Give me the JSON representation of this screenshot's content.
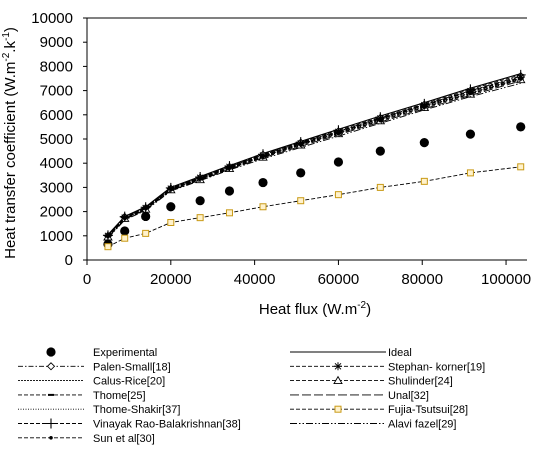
{
  "chart_data": {
    "type": "line",
    "xlabel": "Heat flux (W.m",
    "xlabel_sup": "-2",
    "xlabel_end": ")",
    "ylabel": "Heat transfer coefficient (W.m",
    "ylabel_sup1": "-2",
    "ylabel_mid": ".k",
    "ylabel_sup2": "-1",
    "ylabel_end": ")",
    "xlim": [
      0,
      105000
    ],
    "ylim": [
      0,
      10000
    ],
    "x_ticks": [
      0,
      20000,
      40000,
      60000,
      80000,
      100000
    ],
    "y_ticks": [
      0,
      1000,
      2000,
      3000,
      4000,
      5000,
      6000,
      7000,
      8000,
      9000,
      10000
    ],
    "x_tick_labels": [
      "0",
      "20000",
      "40000",
      "60000",
      "80000",
      "100000"
    ],
    "y_tick_labels": [
      "0",
      "1000",
      "2000",
      "3000",
      "4000",
      "5000",
      "6000",
      "7000",
      "8000",
      "9000",
      "10000"
    ],
    "grid": false,
    "legend_position": "bottom",
    "x": [
      5000,
      9000,
      14000,
      20000,
      27000,
      34000,
      42000,
      51000,
      60000,
      70000,
      80500,
      91500,
      103500
    ],
    "series": [
      {
        "name": "Experimental",
        "style": "marker",
        "marker": "filled-circle",
        "values": [
          650,
          1200,
          1800,
          2200,
          2450,
          2850,
          3200,
          3600,
          4050,
          4500,
          4850,
          5200,
          5500
        ]
      },
      {
        "name": "Ideal",
        "style": "solid",
        "marker": "none",
        "values": [
          1050,
          1800,
          2200,
          3000,
          3450,
          3900,
          4400,
          4900,
          5400,
          5950,
          6500,
          7100,
          7700
        ]
      },
      {
        "name": "Palen-Small[18]",
        "style": "dash-dot",
        "marker": "open-diamond",
        "values": [
          1000,
          1780,
          2150,
          2950,
          3400,
          3850,
          4350,
          4850,
          5320,
          5870,
          6420,
          7000,
          7600
        ]
      },
      {
        "name": "Stephan- korner[19]",
        "style": "dashed",
        "marker": "asterisk",
        "values": [
          1000,
          1750,
          2150,
          2950,
          3400,
          3850,
          4320,
          4820,
          5300,
          5850,
          6400,
          6980,
          7550
        ]
      },
      {
        "name": "Calus-Rice[20]",
        "style": "dense-dash",
        "marker": "none",
        "values": [
          950,
          1700,
          2100,
          2900,
          3350,
          3800,
          4280,
          4780,
          5250,
          5800,
          6350,
          6900,
          7500
        ]
      },
      {
        "name": "Shulinder[24]",
        "style": "dashed",
        "marker": "open-triangle",
        "values": [
          950,
          1720,
          2100,
          2900,
          3320,
          3780,
          4250,
          4750,
          5220,
          5750,
          6300,
          6850,
          7450
        ]
      },
      {
        "name": "Thome[25]",
        "style": "dashed",
        "marker": "small-dash",
        "values": [
          980,
          1740,
          2130,
          2920,
          3370,
          3820,
          4300,
          4800,
          5280,
          5820,
          6370,
          6950,
          7520
        ]
      },
      {
        "name": "Unal[32]",
        "style": "long-dash",
        "marker": "none",
        "values": [
          920,
          1680,
          2080,
          2870,
          3300,
          3750,
          4220,
          4700,
          5180,
          5700,
          6250,
          6800,
          7400
        ]
      },
      {
        "name": "Thome-Shakir[37]",
        "style": "dotted",
        "marker": "none",
        "values": [
          1000,
          1760,
          2160,
          2960,
          3410,
          3860,
          4340,
          4840,
          5310,
          5860,
          6410,
          6990,
          7580
        ]
      },
      {
        "name": "Fujia-Tsutsui[28]",
        "style": "dashed",
        "marker": "open-square",
        "values": [
          550,
          900,
          1100,
          1550,
          1750,
          1950,
          2200,
          2450,
          2700,
          3000,
          3250,
          3600,
          3850
        ]
      },
      {
        "name": "Vinayak Rao-Balakrishnan[38]",
        "style": "dashed",
        "marker": "plus",
        "values": [
          1020,
          1790,
          2180,
          2980,
          3430,
          3880,
          4370,
          4870,
          5360,
          5900,
          6450,
          7050,
          7650
        ]
      },
      {
        "name": "Alavi fazel[29]",
        "style": "dash-dot-dot",
        "marker": "none",
        "values": [
          900,
          1650,
          2050,
          2850,
          3280,
          3720,
          4180,
          4650,
          5120,
          5650,
          6200,
          6750,
          7300
        ]
      },
      {
        "name": "Sun et al[30]",
        "style": "dashed",
        "marker": "small-filled-circle",
        "values": [
          960,
          1720,
          2120,
          2910,
          3350,
          3790,
          4260,
          4760,
          5230,
          5760,
          6310,
          6880,
          7480
        ]
      }
    ],
    "legend": [
      {
        "label": "Experimental",
        "series": 0,
        "col": 0,
        "row": 0
      },
      {
        "label": "Ideal",
        "series": 1,
        "col": 1,
        "row": 0
      },
      {
        "label": "Palen-Small[18]",
        "series": 2,
        "col": 0,
        "row": 1
      },
      {
        "label": "Stephan- korner[19]",
        "series": 3,
        "col": 1,
        "row": 1
      },
      {
        "label": "Calus-Rice[20]",
        "series": 4,
        "col": 0,
        "row": 2
      },
      {
        "label": "Shulinder[24]",
        "series": 5,
        "col": 1,
        "row": 2
      },
      {
        "label": "Thome[25]",
        "series": 6,
        "col": 0,
        "row": 3
      },
      {
        "label": "Unal[32]",
        "series": 7,
        "col": 1,
        "row": 3
      },
      {
        "label": "Thome-Shakir[37]",
        "series": 8,
        "col": 0,
        "row": 4
      },
      {
        "label": "Fujia-Tsutsui[28]",
        "series": 9,
        "col": 1,
        "row": 4
      },
      {
        "label": "Vinayak Rao-Balakrishnan[38]",
        "series": 10,
        "col": 0,
        "row": 5
      },
      {
        "label": "Alavi fazel[29]",
        "series": 11,
        "col": 1,
        "row": 5
      },
      {
        "label": "Sun et al[30]",
        "series": 12,
        "col": 0,
        "row": 6
      }
    ],
    "colors": {
      "axis": "#000000",
      "series": "#000000",
      "fujia_marker_fill": "#fff2cc",
      "fujia_marker_stroke": "#c99a16"
    }
  }
}
